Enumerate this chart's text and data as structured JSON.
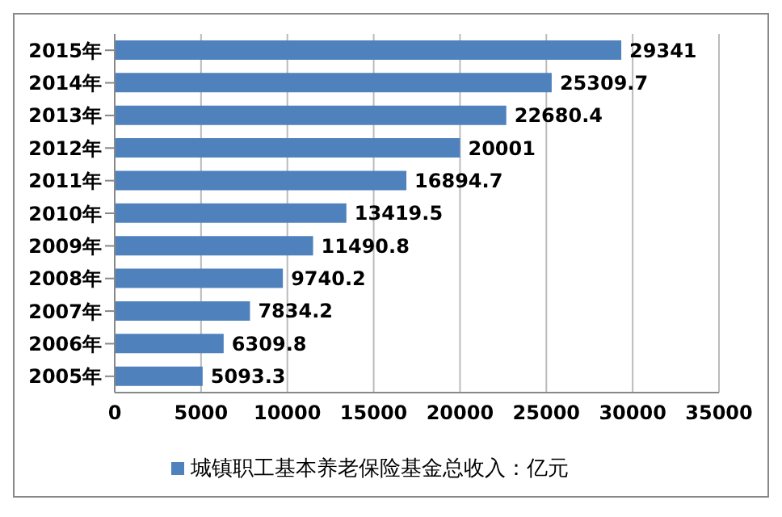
{
  "chart_data": {
    "type": "bar",
    "orientation": "horizontal",
    "categories": [
      "2015年",
      "2014年",
      "2013年",
      "2012年",
      "2011年",
      "2010年",
      "2009年",
      "2008年",
      "2007年",
      "2006年",
      "2005年"
    ],
    "series": [
      {
        "name": "城镇职工基本养老保险基金总收入：亿元",
        "color": "#4f81bd",
        "values": [
          29341,
          25309.7,
          22680.4,
          20001,
          16894.7,
          13419.5,
          11490.8,
          9740.2,
          7834.2,
          6309.8,
          5093.3
        ]
      }
    ],
    "xlim": [
      0,
      35000
    ],
    "xticks": [
      0,
      5000,
      10000,
      15000,
      20000,
      25000,
      30000,
      35000
    ],
    "grid": "x",
    "legend": "bottom",
    "data_labels": true
  }
}
